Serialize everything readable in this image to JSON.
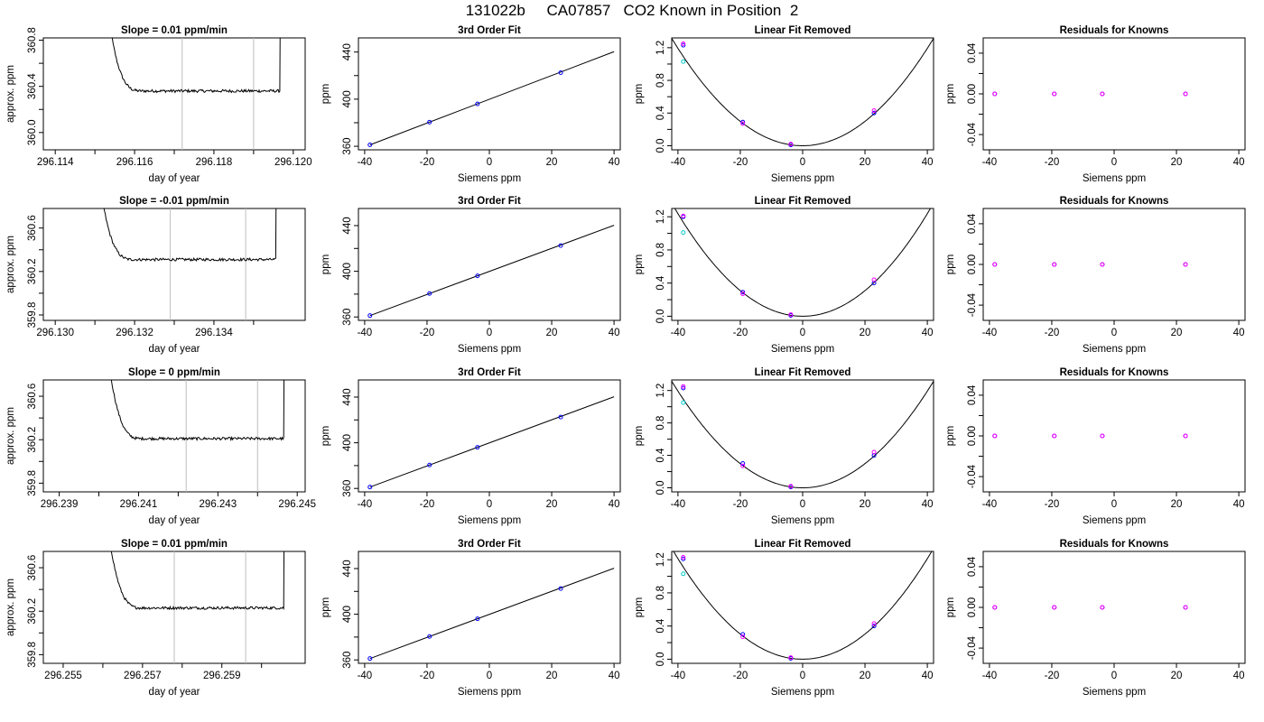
{
  "page_title": "131022b     CA07857   CO2 Known in Position  2",
  "chart_data": [
    {
      "type": "line",
      "title": "Slope =  0.01  ppm/min",
      "xlabel": "day of year",
      "ylabel": "approx. ppm",
      "xlim": [
        296.1137,
        296.1203
      ],
      "ylim": [
        359.85,
        360.82
      ],
      "x_ticks": [
        296.114,
        296.115,
        296.116,
        296.117,
        296.118,
        296.119,
        296.12
      ],
      "x_tick_labels": [
        "296.114",
        "",
        "296.116",
        "",
        "296.118",
        "",
        "296.120"
      ],
      "y_ticks": [
        360.0,
        360.4,
        360.8
      ],
      "y_tick_labels": [
        "360.0",
        "360.4",
        "360.8"
      ],
      "y_minor_ticks": [
        360.2,
        360.6
      ],
      "x_start": 296.1153,
      "x_end": 296.1197,
      "plateau_start": 296.1162,
      "baseline": 360.36,
      "vlines": [
        296.1172,
        296.119
      ],
      "line_color": "#000000",
      "vline_color": "#bebebe"
    },
    {
      "type": "scatter",
      "title": "3rd Order Fit",
      "xlabel": "Siemens ppm",
      "ylabel": "ppm",
      "xlim": [
        -42,
        42
      ],
      "ylim": [
        357,
        452
      ],
      "x_ticks": [
        -40,
        -20,
        0,
        20,
        40
      ],
      "x_tick_labels": [
        "-40",
        "-20",
        "0",
        "20",
        "40"
      ],
      "y_ticks": [
        360,
        400,
        440
      ],
      "y_tick_labels": [
        "360",
        "400",
        "440"
      ],
      "y_minor_ticks": [
        380,
        420
      ],
      "points": [
        {
          "x": -38.3,
          "y": 361.2
        },
        {
          "x": -19.2,
          "y": 380.5
        },
        {
          "x": -3.8,
          "y": 396.0
        },
        {
          "x": 22.9,
          "y": 422.5
        }
      ],
      "fit": {
        "x": [
          -38.3,
          40
        ],
        "y": [
          361.2,
          440.3
        ]
      },
      "point_color": "#0000ff",
      "fit_color": "#000000"
    },
    {
      "type": "scatter",
      "title": "Linear Fit Removed",
      "xlabel": "Siemens ppm",
      "ylabel": "ppm",
      "xlim": [
        -42,
        42
      ],
      "ylim": [
        -0.05,
        1.32
      ],
      "x_ticks": [
        -40,
        -20,
        0,
        20,
        40
      ],
      "x_tick_labels": [
        "-40",
        "-20",
        "0",
        "20",
        "40"
      ],
      "y_ticks": [
        0.0,
        0.4,
        0.8,
        1.2
      ],
      "y_tick_labels": [
        "0.0",
        "0.4",
        "0.8",
        "1.2"
      ],
      "y_minor_ticks": [
        0.2,
        0.6,
        1.0
      ],
      "curve_a": 0.000745,
      "curve_h": 0,
      "series": [
        {
          "color": "#0000ff",
          "points": [
            {
              "x": -38.3,
              "y": 1.23
            },
            {
              "x": -19.2,
              "y": 0.29
            },
            {
              "x": -3.8,
              "y": 0.01
            },
            {
              "x": 22.9,
              "y": 0.4
            }
          ]
        },
        {
          "color": "#ff00ff",
          "points": [
            {
              "x": -38.3,
              "y": 1.25
            },
            {
              "x": -19.2,
              "y": 0.27
            },
            {
              "x": -3.8,
              "y": 0.02
            },
            {
              "x": 22.9,
              "y": 0.43
            }
          ]
        },
        {
          "color": "#00cccc",
          "points": [
            {
              "x": -38.3,
              "y": 1.03
            }
          ]
        }
      ]
    },
    {
      "type": "scatter",
      "title": "Residuals for Knowns",
      "xlabel": "Siemens ppm",
      "ylabel": "ppm",
      "xlim": [
        -42,
        42
      ],
      "ylim": [
        -0.055,
        0.055
      ],
      "x_ticks": [
        -40,
        -20,
        0,
        20,
        40
      ],
      "x_tick_labels": [
        "-40",
        "-20",
        "0",
        "20",
        "40"
      ],
      "y_ticks": [
        -0.04,
        0.0,
        0.04
      ],
      "y_tick_labels": [
        "-0.04",
        "0.00",
        "0.04"
      ],
      "y_minor_ticks": [
        -0.02,
        0.02
      ],
      "points": [
        {
          "x": -38.3,
          "y": 0
        },
        {
          "x": -19.2,
          "y": 0
        },
        {
          "x": -3.8,
          "y": 0
        },
        {
          "x": 22.9,
          "y": 0
        }
      ],
      "point_colors": [
        "#0000ff",
        "#ff00ff"
      ]
    },
    {
      "type": "line",
      "title": "Slope =  -0.01  ppm/min",
      "xlabel": "day of year",
      "ylabel": "approx. ppm",
      "xlim": [
        296.1297,
        296.1363
      ],
      "ylim": [
        359.75,
        360.78
      ],
      "x_ticks": [
        296.13,
        296.131,
        296.132,
        296.133,
        296.134,
        296.135
      ],
      "x_tick_labels": [
        "296.130",
        "",
        "296.132",
        "",
        "296.134",
        ""
      ],
      "y_ticks": [
        359.8,
        360.2,
        360.6
      ],
      "y_tick_labels": [
        "359.8",
        "360.2",
        "360.6"
      ],
      "y_minor_ticks": [
        360.0,
        360.4
      ],
      "x_start": 296.1311,
      "x_end": 296.1356,
      "plateau_start": 296.132,
      "baseline": 360.31,
      "vlines": [
        296.1329,
        296.1348
      ],
      "line_color": "#000000",
      "vline_color": "#bebebe"
    },
    {
      "type": "scatter",
      "title": "3rd Order Fit",
      "xlabel": "Siemens ppm",
      "ylabel": "ppm",
      "xlim": [
        -42,
        42
      ],
      "ylim": [
        357,
        455
      ],
      "x_ticks": [
        -40,
        -20,
        0,
        20,
        40
      ],
      "x_tick_labels": [
        "-40",
        "-20",
        "0",
        "20",
        "40"
      ],
      "y_ticks": [
        360,
        400,
        440
      ],
      "y_tick_labels": [
        "360",
        "400",
        "440"
      ],
      "y_minor_ticks": [
        380,
        420
      ],
      "points": [
        {
          "x": -38.3,
          "y": 361.2
        },
        {
          "x": -19.2,
          "y": 380.5
        },
        {
          "x": -3.8,
          "y": 396.0
        },
        {
          "x": 22.9,
          "y": 422.5
        }
      ],
      "fit": {
        "x": [
          -38.3,
          40
        ],
        "y": [
          361.2,
          440.3
        ]
      },
      "point_color": "#0000ff",
      "fit_color": "#000000"
    },
    {
      "type": "scatter",
      "title": "Linear Fit Removed",
      "xlabel": "Siemens ppm",
      "ylabel": "ppm",
      "xlim": [
        -42,
        42
      ],
      "ylim": [
        -0.05,
        1.3
      ],
      "x_ticks": [
        -40,
        -20,
        0,
        20,
        40
      ],
      "x_tick_labels": [
        "-40",
        "-20",
        "0",
        "20",
        "40"
      ],
      "y_ticks": [
        0.0,
        0.4,
        0.8,
        1.2
      ],
      "y_tick_labels": [
        "0.0",
        "0.4",
        "0.8",
        "1.2"
      ],
      "y_minor_ticks": [
        0.2,
        0.6,
        1.0
      ],
      "curve_a": 0.000773,
      "curve_h": 0,
      "series": [
        {
          "color": "#0000ff",
          "points": [
            {
              "x": -38.3,
              "y": 1.2
            },
            {
              "x": -19.2,
              "y": 0.29
            },
            {
              "x": -3.8,
              "y": 0.01
            },
            {
              "x": 22.9,
              "y": 0.4
            }
          ]
        },
        {
          "color": "#ff00ff",
          "points": [
            {
              "x": -38.3,
              "y": 1.21
            },
            {
              "x": -19.2,
              "y": 0.27
            },
            {
              "x": -3.8,
              "y": 0.02
            },
            {
              "x": 22.9,
              "y": 0.44
            }
          ]
        },
        {
          "color": "#00cccc",
          "points": [
            {
              "x": -38.3,
              "y": 1.01
            }
          ]
        }
      ]
    },
    {
      "type": "scatter",
      "title": "Residuals for Knowns",
      "xlabel": "Siemens ppm",
      "ylabel": "ppm",
      "xlim": [
        -42,
        42
      ],
      "ylim": [
        -0.055,
        0.055
      ],
      "x_ticks": [
        -40,
        -20,
        0,
        20,
        40
      ],
      "x_tick_labels": [
        "-40",
        "-20",
        "0",
        "20",
        "40"
      ],
      "y_ticks": [
        -0.04,
        0.0,
        0.04
      ],
      "y_tick_labels": [
        "-0.04",
        "0.00",
        "0.04"
      ],
      "y_minor_ticks": [
        -0.02,
        0.02
      ],
      "points": [
        {
          "x": -38.3,
          "y": 0
        },
        {
          "x": -19.2,
          "y": 0
        },
        {
          "x": -3.8,
          "y": 0
        },
        {
          "x": 22.9,
          "y": 0
        }
      ],
      "point_colors": [
        "#0000ff",
        "#ff00ff"
      ]
    },
    {
      "type": "line",
      "title": "Slope =  0  ppm/min",
      "xlabel": "day of year",
      "ylabel": "approx. ppm",
      "xlim": [
        296.2386,
        296.2452
      ],
      "ylim": [
        359.72,
        360.75
      ],
      "x_ticks": [
        296.239,
        296.24,
        296.241,
        296.242,
        296.243,
        296.244,
        296.245
      ],
      "x_tick_labels": [
        "296.239",
        "",
        "296.241",
        "",
        "296.243",
        "",
        "296.245"
      ],
      "y_ticks": [
        359.8,
        360.2,
        360.6
      ],
      "y_tick_labels": [
        "359.8",
        "360.2",
        "360.6"
      ],
      "y_minor_ticks": [
        360.0,
        360.4
      ],
      "x_start": 296.2402,
      "x_end": 296.2447,
      "plateau_start": 296.2411,
      "baseline": 360.21,
      "vlines": [
        296.2422,
        296.244
      ],
      "line_color": "#000000",
      "vline_color": "#bebebe"
    },
    {
      "type": "scatter",
      "title": "3rd Order Fit",
      "xlabel": "Siemens ppm",
      "ylabel": "ppm",
      "xlim": [
        -42,
        42
      ],
      "ylim": [
        357,
        455
      ],
      "x_ticks": [
        -40,
        -20,
        0,
        20,
        40
      ],
      "x_tick_labels": [
        "-40",
        "-20",
        "0",
        "20",
        "40"
      ],
      "y_ticks": [
        360,
        400,
        440
      ],
      "y_tick_labels": [
        "360",
        "400",
        "440"
      ],
      "y_minor_ticks": [
        380,
        420
      ],
      "points": [
        {
          "x": -38.3,
          "y": 361.2
        },
        {
          "x": -19.2,
          "y": 380.5
        },
        {
          "x": -3.8,
          "y": 396.0
        },
        {
          "x": 22.9,
          "y": 422.5
        }
      ],
      "fit": {
        "x": [
          -38.3,
          40
        ],
        "y": [
          361.2,
          440.3
        ]
      },
      "point_color": "#0000ff",
      "fit_color": "#000000"
    },
    {
      "type": "scatter",
      "title": "Linear Fit Removed",
      "xlabel": "Siemens ppm",
      "ylabel": "ppm",
      "xlim": [
        -42,
        42
      ],
      "ylim": [
        -0.05,
        1.33
      ],
      "x_ticks": [
        -40,
        -20,
        0,
        20,
        40
      ],
      "x_tick_labels": [
        "-40",
        "-20",
        "0",
        "20",
        "40"
      ],
      "y_ticks": [
        0.0,
        0.4,
        0.8,
        1.2
      ],
      "y_tick_labels": [
        "0.0",
        "0.4",
        "0.8",
        "1.2"
      ],
      "y_minor_ticks": [
        0.2,
        0.6,
        1.0
      ],
      "curve_a": 0.000745,
      "curve_h": 0,
      "series": [
        {
          "color": "#0000ff",
          "points": [
            {
              "x": -38.3,
              "y": 1.23
            },
            {
              "x": -19.2,
              "y": 0.3
            },
            {
              "x": -3.8,
              "y": 0.01
            },
            {
              "x": 22.9,
              "y": 0.4
            }
          ]
        },
        {
          "color": "#ff00ff",
          "points": [
            {
              "x": -38.3,
              "y": 1.25
            },
            {
              "x": -19.2,
              "y": 0.27
            },
            {
              "x": -3.8,
              "y": 0.02
            },
            {
              "x": 22.9,
              "y": 0.44
            }
          ]
        },
        {
          "color": "#00cccc",
          "points": [
            {
              "x": -38.3,
              "y": 1.05
            }
          ]
        }
      ]
    },
    {
      "type": "scatter",
      "title": "Residuals for Knowns",
      "xlabel": "Siemens ppm",
      "ylabel": "ppm",
      "xlim": [
        -42,
        42
      ],
      "ylim": [
        -0.055,
        0.055
      ],
      "x_ticks": [
        -40,
        -20,
        0,
        20,
        40
      ],
      "x_tick_labels": [
        "-40",
        "-20",
        "0",
        "20",
        "40"
      ],
      "y_ticks": [
        -0.04,
        0.0,
        0.04
      ],
      "y_tick_labels": [
        "-0.04",
        "0.00",
        "0.04"
      ],
      "y_minor_ticks": [
        -0.02,
        0.02
      ],
      "points": [
        {
          "x": -38.3,
          "y": 0
        },
        {
          "x": -19.2,
          "y": 0
        },
        {
          "x": -3.8,
          "y": 0
        },
        {
          "x": 22.9,
          "y": 0
        }
      ],
      "point_colors": [
        "#0000ff",
        "#ff00ff"
      ]
    },
    {
      "type": "line",
      "title": "Slope =  0.01  ppm/min",
      "xlabel": "day of year",
      "ylabel": "approx. ppm",
      "xlim": [
        296.2545,
        296.2611
      ],
      "ylim": [
        359.72,
        360.75
      ],
      "x_ticks": [
        296.255,
        296.256,
        296.257,
        296.258,
        296.259,
        296.26
      ],
      "x_tick_labels": [
        "296.255",
        "",
        "296.257",
        "",
        "296.259",
        ""
      ],
      "y_ticks": [
        359.8,
        360.2,
        360.6
      ],
      "y_tick_labels": [
        "359.8",
        "360.2",
        "360.6"
      ],
      "y_minor_ticks": [
        360.0,
        360.4
      ],
      "x_start": 296.2561,
      "x_end": 296.2606,
      "plateau_start": 296.257,
      "baseline": 360.23,
      "vlines": [
        296.2578,
        296.2596
      ],
      "line_color": "#000000",
      "vline_color": "#bebebe"
    },
    {
      "type": "scatter",
      "title": "3rd Order Fit",
      "xlabel": "Siemens ppm",
      "ylabel": "ppm",
      "xlim": [
        -42,
        42
      ],
      "ylim": [
        357,
        455
      ],
      "x_ticks": [
        -40,
        -20,
        0,
        20,
        40
      ],
      "x_tick_labels": [
        "-40",
        "-20",
        "0",
        "20",
        "40"
      ],
      "y_ticks": [
        360,
        400,
        440
      ],
      "y_tick_labels": [
        "360",
        "400",
        "440"
      ],
      "y_minor_ticks": [
        380,
        420
      ],
      "points": [
        {
          "x": -38.3,
          "y": 361.2
        },
        {
          "x": -19.2,
          "y": 380.5
        },
        {
          "x": -3.8,
          "y": 396.0
        },
        {
          "x": 22.9,
          "y": 422.5
        }
      ],
      "fit": {
        "x": [
          -38.3,
          40
        ],
        "y": [
          361.2,
          440.3
        ]
      },
      "point_color": "#0000ff",
      "fit_color": "#000000"
    },
    {
      "type": "scatter",
      "title": "Linear Fit Removed",
      "xlabel": "Siemens ppm",
      "ylabel": "ppm",
      "xlim": [
        -42,
        42
      ],
      "ylim": [
        -0.05,
        1.3
      ],
      "x_ticks": [
        -40,
        -20,
        0,
        20,
        40
      ],
      "x_tick_labels": [
        "-40",
        "-20",
        "0",
        "20",
        "40"
      ],
      "y_ticks": [
        0.0,
        0.4,
        0.8,
        1.2
      ],
      "y_tick_labels": [
        "0.0",
        "0.4",
        "0.8",
        "1.2"
      ],
      "y_minor_ticks": [
        0.2,
        0.6,
        1.0
      ],
      "curve_a": 0.000758,
      "curve_h": 0,
      "series": [
        {
          "color": "#0000ff",
          "points": [
            {
              "x": -38.3,
              "y": 1.21
            },
            {
              "x": -19.2,
              "y": 0.3
            },
            {
              "x": -3.8,
              "y": 0.01
            },
            {
              "x": 22.9,
              "y": 0.4
            }
          ]
        },
        {
          "color": "#ff00ff",
          "points": [
            {
              "x": -38.3,
              "y": 1.23
            },
            {
              "x": -19.2,
              "y": 0.27
            },
            {
              "x": -3.8,
              "y": 0.02
            },
            {
              "x": 22.9,
              "y": 0.43
            }
          ]
        },
        {
          "color": "#00cccc",
          "points": [
            {
              "x": -38.3,
              "y": 1.03
            }
          ]
        }
      ]
    },
    {
      "type": "scatter",
      "title": "Residuals for Knowns",
      "xlabel": "Siemens ppm",
      "ylabel": "ppm",
      "xlim": [
        -42,
        42
      ],
      "ylim": [
        -0.055,
        0.055
      ],
      "x_ticks": [
        -40,
        -20,
        0,
        20,
        40
      ],
      "x_tick_labels": [
        "-40",
        "-20",
        "0",
        "20",
        "40"
      ],
      "y_ticks": [
        -0.04,
        0.0,
        0.04
      ],
      "y_tick_labels": [
        "-0.04",
        "0.00",
        "0.04"
      ],
      "y_minor_ticks": [
        -0.02,
        0.02
      ],
      "points": [
        {
          "x": -38.3,
          "y": 0
        },
        {
          "x": -19.2,
          "y": 0
        },
        {
          "x": -3.8,
          "y": 0
        },
        {
          "x": 22.9,
          "y": 0
        }
      ],
      "point_colors": [
        "#0000ff",
        "#ff00ff"
      ]
    }
  ]
}
